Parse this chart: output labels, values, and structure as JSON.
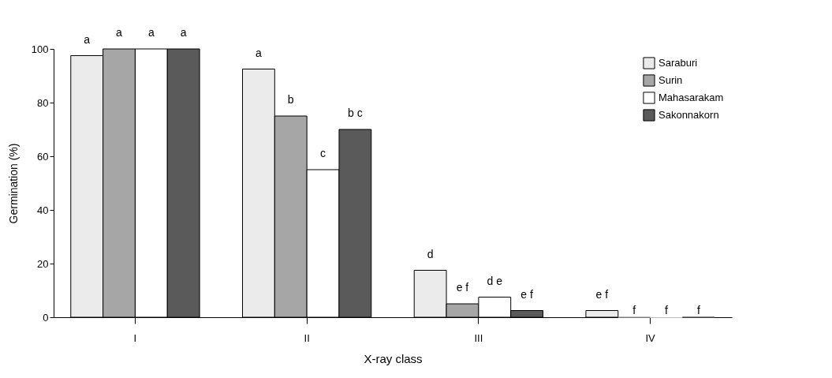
{
  "chart_data": {
    "type": "bar",
    "xlabel": "X-ray class",
    "ylabel": "Germination (%)",
    "categories": [
      "I",
      "II",
      "III",
      "IV"
    ],
    "series": [
      {
        "name": "Saraburi",
        "color": "#ebebeb",
        "values": [
          97.5,
          92.5,
          17.5,
          2.5
        ],
        "value_labels": [
          "a",
          "a",
          "d",
          "e f"
        ]
      },
      {
        "name": "Surin",
        "color": "#a6a6a6",
        "values": [
          100,
          75,
          5,
          0
        ],
        "value_labels": [
          "a",
          "b",
          "e f",
          "f"
        ]
      },
      {
        "name": "Mahasarakam",
        "color": "#ffffff",
        "values": [
          100,
          55,
          7.5,
          0
        ],
        "value_labels": [
          "a",
          "c",
          "d e",
          "f"
        ]
      },
      {
        "name": "Sakonnakorn",
        "color": "#5a5a5a",
        "values": [
          100,
          70,
          2.5,
          0
        ],
        "value_labels": [
          "a",
          "b c",
          "e f",
          "f"
        ]
      }
    ],
    "ylim": [
      0,
      100
    ],
    "yticks": [
      0,
      20,
      40,
      60,
      80,
      100
    ],
    "grid": false,
    "legend": "top right"
  }
}
